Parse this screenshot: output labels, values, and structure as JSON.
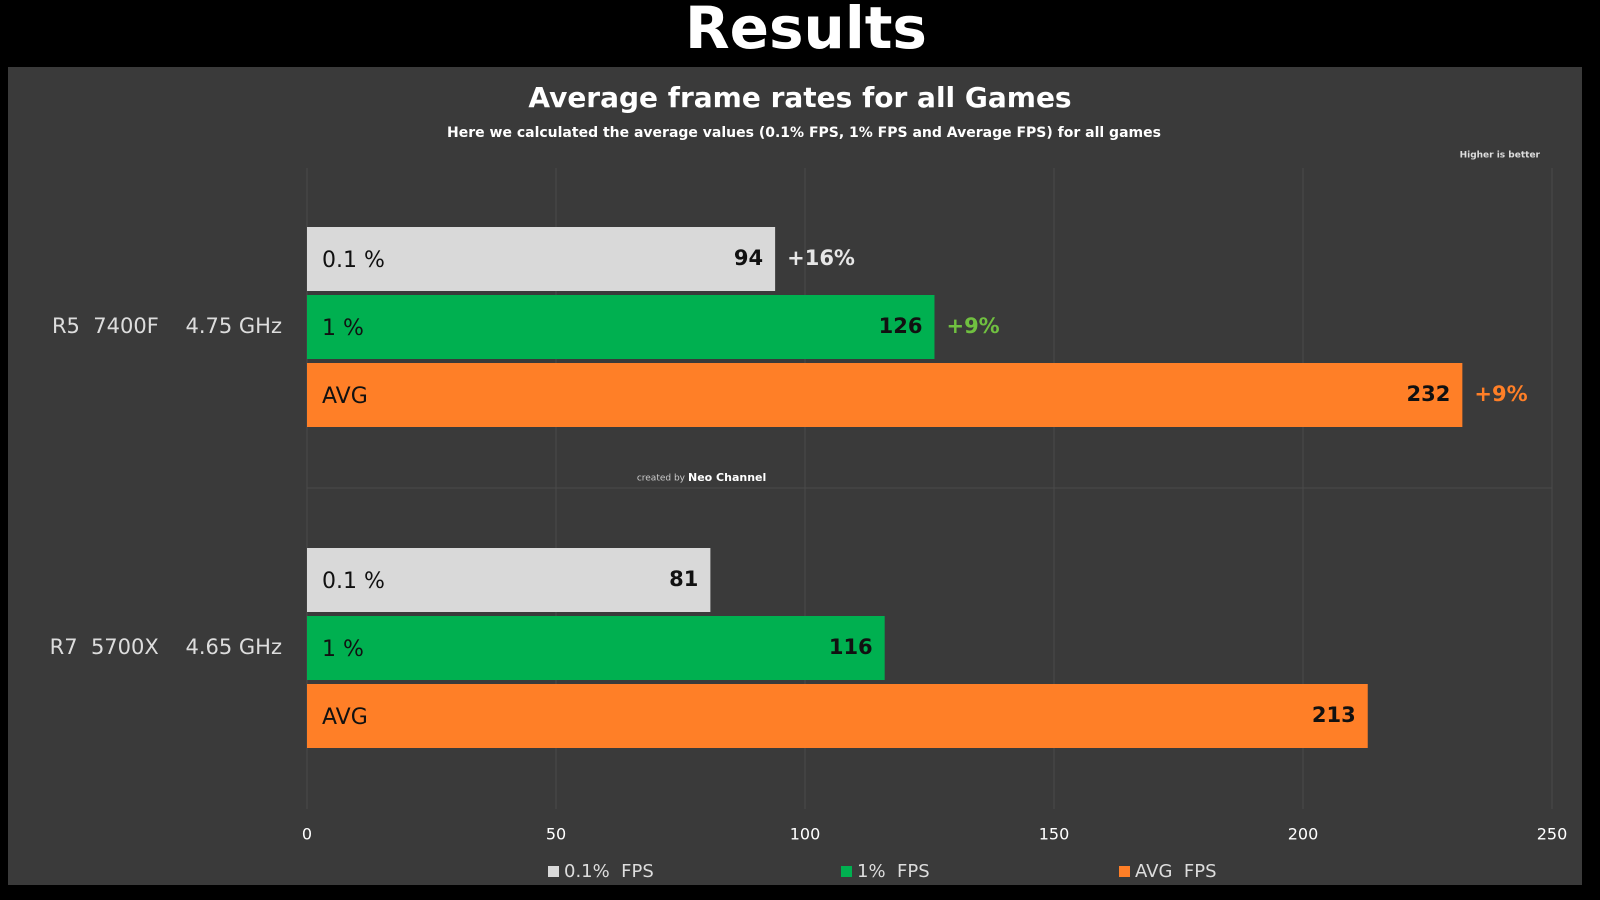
{
  "header": "Results",
  "chart_data": {
    "type": "bar",
    "orientation": "horizontal",
    "title": "Average frame rates for all Games",
    "subtitle": "Here we calculated the average values (0.1% FPS, 1% FPS and Average FPS) for all games",
    "note": "Higher is better",
    "credit_prefix": "created by",
    "credit_name": "Neo Channel",
    "categories": [
      "R5  7400F    4.75 GHz",
      "R7  5700X    4.65 GHz"
    ],
    "series": [
      {
        "name": "0.1%  FPS",
        "color": "#d9d9d9",
        "bar_label": "0.1 %",
        "values": [
          94,
          81
        ],
        "diff_labels": [
          "+16%",
          null
        ],
        "annotation_color": "#e6e6e6"
      },
      {
        "name": "1%  FPS",
        "color": "#00b050",
        "bar_label": "1 %",
        "values": [
          126,
          116
        ],
        "diff_labels": [
          "+9%",
          null
        ],
        "annotation_color": "#70c040"
      },
      {
        "name": "AVG  FPS",
        "color": "#ff7f27",
        "bar_label": "AVG",
        "values": [
          232,
          213
        ],
        "diff_labels": [
          "+9%",
          null
        ],
        "annotation_color": "#ff7f27"
      }
    ],
    "xlim": [
      0,
      250
    ],
    "xticks": [
      0,
      50,
      100,
      150,
      200,
      250
    ],
    "grid": true
  }
}
